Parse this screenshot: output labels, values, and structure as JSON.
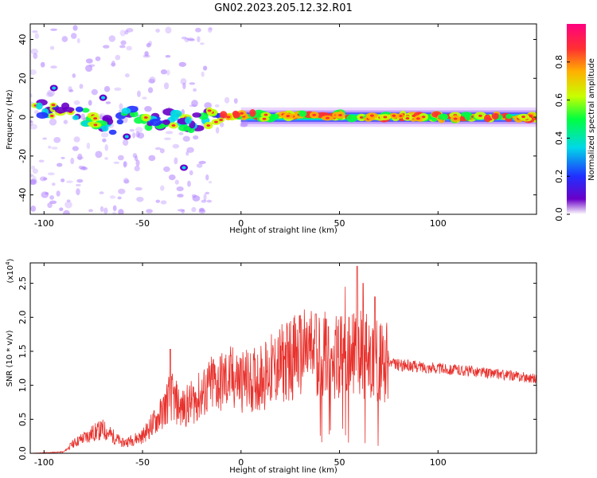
{
  "title": "GN02.2023.205.12.32.R01",
  "chart_data": [
    {
      "type": "heatmap",
      "xlabel": "Height of straight line (km)",
      "ylabel": "Frequency (Hz)",
      "xlim": [
        -107,
        150
      ],
      "ylim": [
        -50,
        48
      ],
      "x_ticks": [
        -100,
        -50,
        0,
        50,
        100
      ],
      "y_ticks": [
        -40,
        -20,
        0,
        20,
        40
      ],
      "colorbar": {
        "label": "Normalized spectral amplitude",
        "range": [
          0,
          1
        ],
        "ticks": [
          0.0,
          0.2,
          0.4,
          0.6,
          0.8
        ],
        "tick_labels": [
          "0.0",
          "0.2",
          "0.4",
          "0.6",
          "0.8"
        ],
        "colors": [
          "#ffffff",
          "#6a00c8",
          "#2030ff",
          "#00d8e8",
          "#00ff40",
          "#c8ff00",
          "#ffb000",
          "#ff3030",
          "#ff0080"
        ]
      },
      "ridge": [
        {
          "x": -105,
          "y": 4
        },
        {
          "x": -95,
          "y": 3
        },
        {
          "x": -85,
          "y": 1
        },
        {
          "x": -75,
          "y": -1
        },
        {
          "x": -65,
          "y": -5
        },
        {
          "x": -55,
          "y": 2
        },
        {
          "x": -45,
          "y": -2
        },
        {
          "x": -35,
          "y": -1
        },
        {
          "x": -25,
          "y": -3
        },
        {
          "x": -15,
          "y": 0
        },
        {
          "x": -5,
          "y": 1
        },
        {
          "x": 0,
          "y": 1
        },
        {
          "x": 20,
          "y": 0
        },
        {
          "x": 50,
          "y": 1
        },
        {
          "x": 80,
          "y": 0
        },
        {
          "x": 150,
          "y": 0
        }
      ]
    },
    {
      "type": "line",
      "xlabel": "Height of straight line (km)",
      "ylabel": "SNR (10 * v/v)",
      "y_multiplier": "(x10",
      "y_multiplier_exp": "4",
      "xlim": [
        -107,
        150
      ],
      "ylim": [
        0,
        28000
      ],
      "x_ticks": [
        -100,
        -50,
        0,
        50,
        100
      ],
      "y_ticks": [
        0,
        5000,
        10000,
        15000,
        20000,
        25000
      ],
      "y_tick_labels": [
        "0.0",
        "0.5",
        "1.0",
        "1.5",
        "2.0",
        "2.5"
      ],
      "line_color": "#e8322d",
      "envelope": [
        {
          "x": -107,
          "y": 0
        },
        {
          "x": -90,
          "y": 200
        },
        {
          "x": -85,
          "y": 1500
        },
        {
          "x": -75,
          "y": 3000
        },
        {
          "x": -70,
          "y": 3500
        },
        {
          "x": -60,
          "y": 1500
        },
        {
          "x": -50,
          "y": 2500
        },
        {
          "x": -40,
          "y": 6000
        },
        {
          "x": -36,
          "y": 8500
        },
        {
          "x": -30,
          "y": 6500
        },
        {
          "x": -20,
          "y": 8500
        },
        {
          "x": -15,
          "y": 10000
        },
        {
          "x": -5,
          "y": 11000
        },
        {
          "x": 5,
          "y": 10500
        },
        {
          "x": 15,
          "y": 12000
        },
        {
          "x": 25,
          "y": 14000
        },
        {
          "x": 35,
          "y": 15000
        },
        {
          "x": 45,
          "y": 14500
        },
        {
          "x": 55,
          "y": 14000
        },
        {
          "x": 60,
          "y": 15000
        },
        {
          "x": 65,
          "y": 14000
        },
        {
          "x": 70,
          "y": 13500
        },
        {
          "x": 80,
          "y": 13000
        },
        {
          "x": 100,
          "y": 12500
        },
        {
          "x": 120,
          "y": 12000
        },
        {
          "x": 150,
          "y": 11000
        }
      ],
      "peaks": [
        {
          "x": -36,
          "y": 15300
        },
        {
          "x": -14,
          "y": 13800
        },
        {
          "x": 38,
          "y": 20500
        },
        {
          "x": 53,
          "y": 24500
        },
        {
          "x": 59,
          "y": 27500
        },
        {
          "x": 62,
          "y": 25000
        },
        {
          "x": 68,
          "y": 23000
        }
      ]
    }
  ]
}
